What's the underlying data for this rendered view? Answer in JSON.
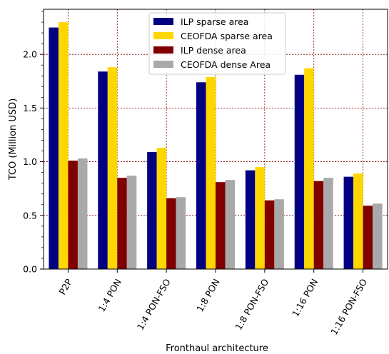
{
  "chart_data": {
    "type": "bar",
    "xlabel": "Fronthaul architecture",
    "ylabel": "TCO (Million USD)",
    "categories": [
      "P2P",
      "1:4 PON",
      "1:4 PON-FSO",
      "1:8 PON",
      "1:8 PON-FSO",
      "1:16 PON",
      "1:16 PON-FSO"
    ],
    "ylim": [
      0,
      2.42
    ],
    "yticks": [
      "0.0",
      "0.5",
      "1.0",
      "1.5",
      "2.0"
    ],
    "ytick_values": [
      0,
      0.5,
      1.0,
      1.5,
      2.0
    ],
    "grid": true,
    "legend_position": "top-center",
    "series": [
      {
        "name": "ILP sparse area",
        "color": "#000080",
        "values": [
          2.25,
          1.84,
          1.09,
          1.74,
          0.92,
          1.81,
          0.86
        ]
      },
      {
        "name": "CEOFDA sparse area",
        "color": "#FFD700",
        "values": [
          2.3,
          1.88,
          1.13,
          1.79,
          0.95,
          1.87,
          0.89
        ]
      },
      {
        "name": "ILP dense area",
        "color": "#800000",
        "values": [
          1.01,
          0.85,
          0.66,
          0.81,
          0.64,
          0.82,
          0.59
        ]
      },
      {
        "name": "CEOFDA dense Area",
        "color": "#A9A9A9",
        "values": [
          1.03,
          0.87,
          0.67,
          0.83,
          0.65,
          0.85,
          0.61
        ]
      }
    ]
  }
}
